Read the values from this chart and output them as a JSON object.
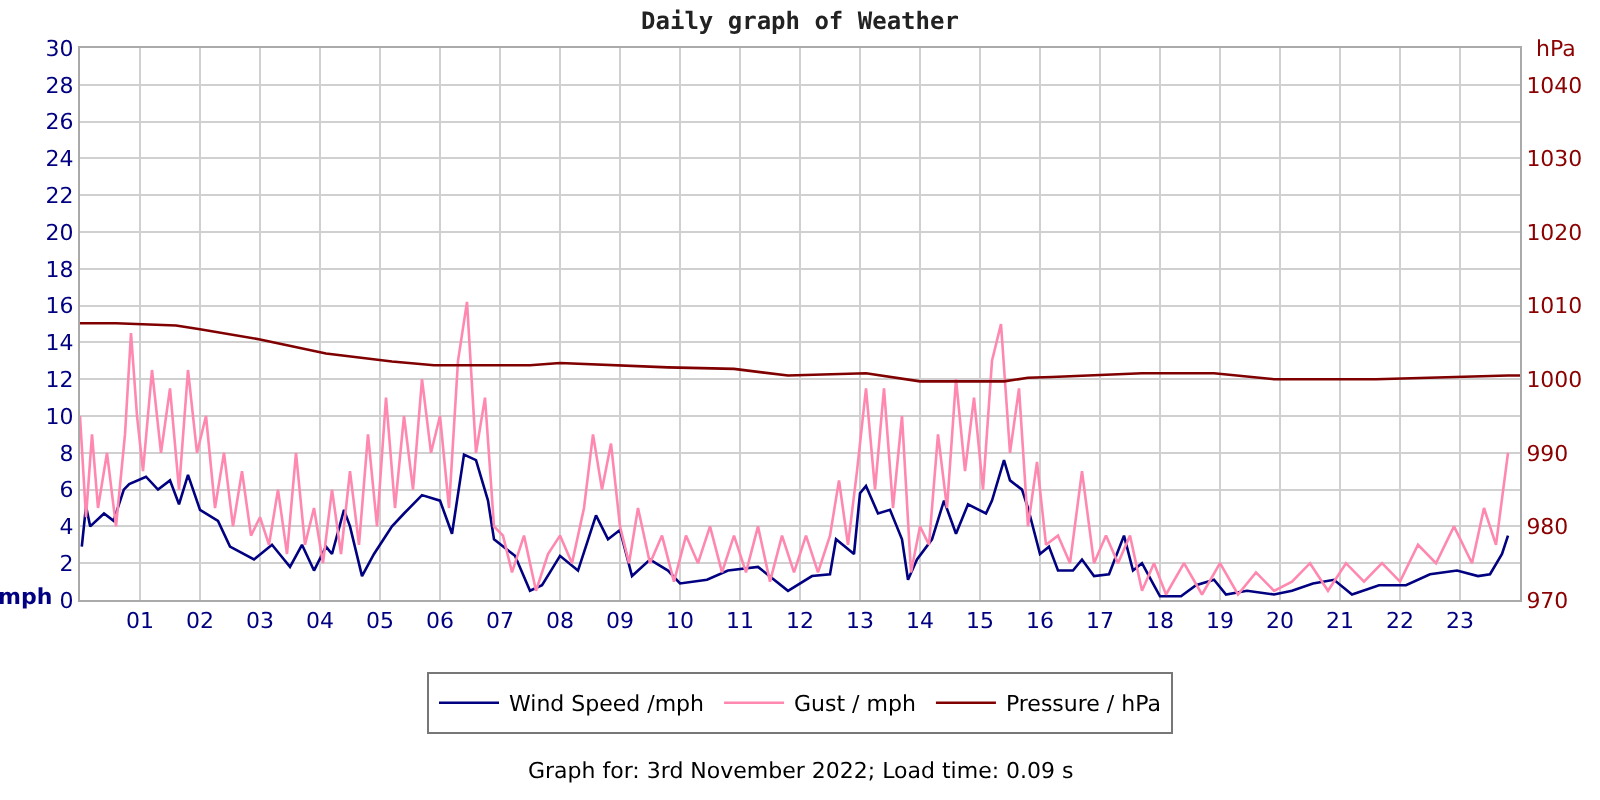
{
  "chart_data": {
    "type": "line",
    "title": "Daily graph of Weather",
    "ylabel": "mph",
    "y2label": "hPa",
    "annotations": [
      "Graph for: 3rd November 2022; Load time: 0.09 s"
    ],
    "xlim": [
      0,
      24
    ],
    "xticks": [
      {
        "value": 1,
        "label": "01"
      },
      {
        "value": 2,
        "label": "02"
      },
      {
        "value": 3,
        "label": "03"
      },
      {
        "value": 4,
        "label": "04"
      },
      {
        "value": 5,
        "label": "05"
      },
      {
        "value": 6,
        "label": "06"
      },
      {
        "value": 7,
        "label": "07"
      },
      {
        "value": 8,
        "label": "08"
      },
      {
        "value": 9,
        "label": "09"
      },
      {
        "value": 10,
        "label": "10"
      },
      {
        "value": 11,
        "label": "11"
      },
      {
        "value": 12,
        "label": "12"
      },
      {
        "value": 13,
        "label": "13"
      },
      {
        "value": 14,
        "label": "14"
      },
      {
        "value": 15,
        "label": "15"
      },
      {
        "value": 16,
        "label": "16"
      },
      {
        "value": 17,
        "label": "17"
      },
      {
        "value": 18,
        "label": "18"
      },
      {
        "value": 19,
        "label": "19"
      },
      {
        "value": 20,
        "label": "20"
      },
      {
        "value": 21,
        "label": "21"
      },
      {
        "value": 22,
        "label": "22"
      },
      {
        "value": 23,
        "label": "23"
      }
    ],
    "ylim": [
      0,
      30
    ],
    "yticks": [
      0,
      2,
      4,
      6,
      8,
      10,
      12,
      14,
      16,
      18,
      20,
      22,
      24,
      26,
      28,
      30
    ],
    "y2lim": [
      970,
      1045
    ],
    "y2ticks": [
      970,
      980,
      990,
      1000,
      1010,
      1020,
      1030,
      1040
    ],
    "grid": true,
    "legend": "bottom",
    "marker": "none",
    "line_style": "solid",
    "series": [
      {
        "name": "Wind Speed /mph",
        "color": "#000080",
        "x": [
          0.03,
          0.1,
          0.17,
          0.4,
          0.56,
          0.73,
          0.82,
          1.1,
          1.3,
          1.5,
          1.65,
          1.8,
          2.0,
          2.3,
          2.5,
          2.9,
          3.2,
          3.4,
          3.5,
          3.7,
          3.9,
          4.1,
          4.2,
          4.4,
          4.5,
          4.7,
          4.9,
          5.2,
          5.4,
          5.7,
          6.0,
          6.2,
          6.4,
          6.6,
          6.8,
          6.9,
          7.25,
          7.5,
          7.7,
          7.85,
          8.0,
          8.3,
          8.6,
          8.8,
          9.0,
          9.2,
          9.5,
          9.8,
          10.0,
          10.45,
          10.8,
          11.3,
          11.8,
          12.2,
          12.5,
          12.6,
          12.9,
          13.0,
          13.1,
          13.3,
          13.5,
          13.7,
          13.8,
          13.95,
          14.2,
          14.4,
          14.6,
          14.8,
          15.1,
          15.2,
          15.4,
          15.5,
          15.7,
          15.8,
          16.0,
          16.15,
          16.3,
          16.55,
          16.7,
          16.9,
          17.15,
          17.4,
          17.55,
          17.7,
          17.9,
          18.0,
          18.35,
          18.6,
          18.9,
          19.1,
          19.45,
          19.9,
          20.2,
          20.55,
          20.9,
          21.2,
          21.65,
          22.1,
          22.5,
          22.95,
          23.3,
          23.5,
          23.7,
          23.8
        ],
        "values": [
          2.9,
          5.1,
          4.0,
          4.7,
          4.3,
          6.0,
          6.3,
          6.7,
          6.0,
          6.5,
          5.2,
          6.8,
          4.9,
          4.3,
          2.9,
          2.2,
          3.0,
          2.2,
          1.8,
          3.0,
          1.6,
          2.9,
          2.5,
          4.9,
          4.0,
          1.3,
          2.5,
          4.0,
          4.7,
          5.7,
          5.4,
          3.6,
          7.9,
          7.6,
          5.4,
          3.3,
          2.4,
          0.5,
          0.8,
          1.6,
          2.4,
          1.6,
          4.6,
          3.3,
          3.8,
          1.3,
          2.2,
          1.6,
          0.9,
          1.1,
          1.6,
          1.8,
          0.5,
          1.3,
          1.4,
          3.3,
          2.5,
          5.8,
          6.2,
          4.7,
          4.9,
          3.3,
          1.1,
          2.2,
          3.3,
          5.4,
          3.6,
          5.2,
          4.7,
          5.4,
          7.6,
          6.5,
          6.0,
          5.0,
          2.5,
          2.9,
          1.6,
          1.6,
          2.2,
          1.3,
          1.4,
          3.5,
          1.6,
          2.0,
          0.8,
          0.2,
          0.2,
          0.8,
          1.1,
          0.3,
          0.5,
          0.3,
          0.5,
          0.9,
          1.1,
          0.3,
          0.8,
          0.8,
          1.4,
          1.6,
          1.3,
          1.4,
          2.5,
          3.5
        ]
      },
      {
        "name": "Gust / mph",
        "color": "#ff88b0",
        "x": [
          0,
          0.1,
          0.2,
          0.3,
          0.45,
          0.6,
          0.75,
          0.85,
          0.95,
          1.05,
          1.2,
          1.35,
          1.5,
          1.65,
          1.8,
          1.95,
          2.1,
          2.25,
          2.4,
          2.55,
          2.7,
          2.85,
          3.0,
          3.15,
          3.3,
          3.45,
          3.6,
          3.75,
          3.9,
          4.05,
          4.2,
          4.35,
          4.5,
          4.65,
          4.8,
          4.95,
          5.1,
          5.25,
          5.4,
          5.55,
          5.7,
          5.85,
          6.0,
          6.15,
          6.3,
          6.45,
          6.6,
          6.75,
          6.9,
          7.05,
          7.2,
          7.4,
          7.6,
          7.8,
          8.0,
          8.2,
          8.4,
          8.55,
          8.7,
          8.85,
          9.0,
          9.15,
          9.3,
          9.5,
          9.7,
          9.9,
          10.1,
          10.3,
          10.5,
          10.7,
          10.9,
          11.1,
          11.3,
          11.5,
          11.7,
          11.9,
          12.1,
          12.3,
          12.5,
          12.65,
          12.8,
          12.95,
          13.1,
          13.25,
          13.4,
          13.55,
          13.7,
          13.85,
          14.0,
          14.15,
          14.3,
          14.45,
          14.6,
          14.75,
          14.9,
          15.05,
          15.2,
          15.35,
          15.5,
          15.65,
          15.8,
          15.95,
          16.1,
          16.3,
          16.5,
          16.7,
          16.9,
          17.1,
          17.3,
          17.5,
          17.7,
          17.9,
          18.1,
          18.4,
          18.7,
          19.0,
          19.3,
          19.6,
          19.9,
          20.2,
          20.5,
          20.8,
          21.1,
          21.4,
          21.7,
          22.0,
          22.3,
          22.6,
          22.9,
          23.2,
          23.4,
          23.6,
          23.8
        ],
        "values": [
          10,
          4.5,
          9,
          5,
          8,
          4,
          9,
          14.5,
          10,
          7,
          12.5,
          8,
          11.5,
          6,
          12.5,
          8,
          10,
          5,
          8,
          4,
          7,
          3.5,
          4.5,
          3,
          6,
          2.5,
          8,
          3,
          5,
          2,
          6,
          2.5,
          7,
          3,
          9,
          4,
          11,
          5,
          10,
          6,
          12,
          8,
          10,
          5,
          13,
          16.2,
          8,
          11,
          4,
          3.5,
          1.5,
          3.5,
          0.5,
          2.5,
          3.5,
          2,
          5,
          9,
          6,
          8.5,
          4,
          2,
          5,
          2,
          3.5,
          1,
          3.5,
          2,
          4,
          1.5,
          3.5,
          1.5,
          4,
          1,
          3.5,
          1.5,
          3.5,
          1.5,
          3.5,
          6.5,
          3,
          7,
          11.5,
          6,
          11.5,
          5,
          10,
          1.5,
          4,
          3,
          9,
          5,
          12,
          7,
          11,
          6,
          13,
          15,
          8,
          11.5,
          4,
          7.5,
          3,
          3.5,
          2,
          7,
          2,
          3.5,
          2,
          3.5,
          0.5,
          2,
          0.3,
          2,
          0.3,
          2,
          0.3,
          1.5,
          0.5,
          1,
          2,
          0.5,
          2,
          1,
          2,
          1,
          3,
          2,
          4,
          2,
          5,
          3,
          8
        ]
      },
      {
        "name": "Pressure / hPa",
        "color": "#800000",
        "axis": "y2",
        "x": [
          0,
          0.6,
          1.6,
          2.0,
          3.0,
          4.1,
          5.2,
          5.9,
          7.5,
          8.0,
          9.8,
          10.9,
          11.8,
          13.1,
          14.0,
          15.4,
          15.8,
          16.2,
          17.7,
          18.9,
          19.9,
          21.6,
          23.8,
          24
        ],
        "values": [
          1007.6,
          1007.6,
          1007.3,
          1006.8,
          1005.4,
          1003.5,
          1002.4,
          1001.9,
          1001.9,
          1002.2,
          1001.6,
          1001.4,
          1000.5,
          1000.8,
          999.7,
          999.7,
          1000.2,
          1000.3,
          1000.8,
          1000.8,
          1000,
          1000,
          1000.5,
          1000.5
        ]
      }
    ]
  }
}
